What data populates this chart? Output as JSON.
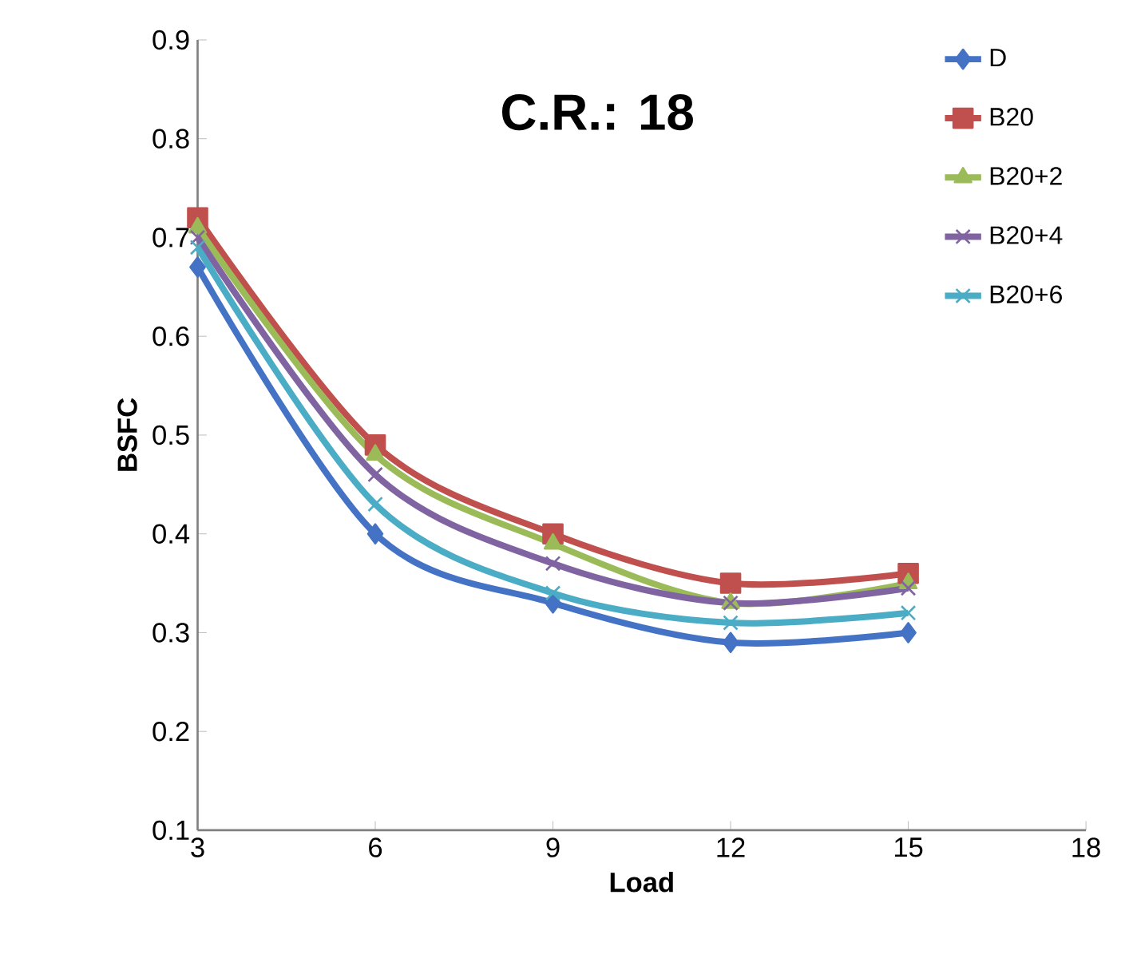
{
  "chart_data": {
    "type": "line",
    "title": "C.R.: 18",
    "xlabel": "Load",
    "ylabel": "BSFC",
    "x": [
      3,
      6,
      9,
      12,
      15
    ],
    "xlim": [
      3,
      18
    ],
    "xticks": [
      3,
      6,
      9,
      12,
      15,
      18
    ],
    "ylim": [
      0.1,
      0.9
    ],
    "yticks": [
      0.1,
      0.2,
      0.3,
      0.4,
      0.5,
      0.6,
      0.7,
      0.8,
      0.9
    ],
    "grid": false,
    "legend": "right",
    "line_style": "solid",
    "series": [
      {
        "name": "D",
        "color": "#4472c4",
        "marker": "diamond",
        "values": [
          0.67,
          0.4,
          0.33,
          0.29,
          0.3
        ]
      },
      {
        "name": "B20",
        "color": "#c0504d",
        "marker": "square",
        "values": [
          0.72,
          0.49,
          0.4,
          0.35,
          0.36
        ]
      },
      {
        "name": "B20+2",
        "color": "#9bbb59",
        "marker": "triangle",
        "values": [
          0.71,
          0.48,
          0.39,
          0.33,
          0.35
        ]
      },
      {
        "name": "B20+4",
        "color": "#8064a2",
        "marker": "cross",
        "values": [
          0.7,
          0.46,
          0.37,
          0.33,
          0.345
        ]
      },
      {
        "name": "B20+6",
        "color": "#4bacc6",
        "marker": "cross",
        "values": [
          0.69,
          0.43,
          0.34,
          0.31,
          0.32
        ]
      }
    ]
  }
}
